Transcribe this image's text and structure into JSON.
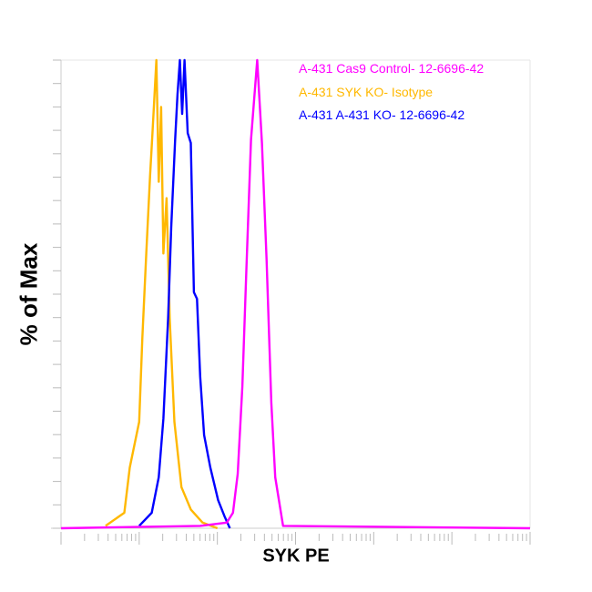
{
  "chart_data": {
    "type": "line",
    "title": "",
    "xlabel": "SYK PE",
    "ylabel": "% of Max",
    "x_scale": "log",
    "x_decades": 6,
    "xlim": [
      0,
      6
    ],
    "ylim": [
      0,
      100
    ],
    "grid": false,
    "legend_position": "top-right",
    "series": [
      {
        "name": "A-431 Cas9 Control- 12-6696-42",
        "color": "#ff00ff",
        "x": [
          0,
          1.78,
          2.12,
          2.2,
          2.26,
          2.32,
          2.37,
          2.43,
          2.51,
          2.57,
          2.63,
          2.69,
          2.74,
          2.84,
          6
        ],
        "y": [
          0,
          0.5,
          1.2,
          3.3,
          11.6,
          30.3,
          54.6,
          83,
          100,
          82.3,
          57.4,
          26.8,
          10.9,
          0.5,
          0
        ]
      },
      {
        "name": "A-431 SYK KO- Isotype",
        "color": "#ffb800",
        "x": [
          0.57,
          0.81,
          0.88,
          1.0,
          1.04,
          1.09,
          1.14,
          1.17,
          1.22,
          1.25,
          1.28,
          1.31,
          1.35,
          1.39,
          1.45,
          1.54,
          1.66,
          1.81,
          2.0
        ],
        "y": [
          0.5,
          3.3,
          13,
          22.7,
          40.7,
          58.7,
          75.4,
          84.4,
          100,
          74,
          90,
          58.7,
          70.5,
          44.9,
          22.7,
          8.8,
          4,
          1.2,
          0
        ]
      },
      {
        "name": "A-431 A-431 KO- 12-6696-42",
        "color": "#0000ff",
        "x": [
          1.0,
          1.16,
          1.25,
          1.31,
          1.37,
          1.41,
          1.46,
          1.49,
          1.52,
          1.55,
          1.58,
          1.62,
          1.66,
          1.7,
          1.74,
          1.78,
          1.83,
          1.91,
          2.01,
          2.09,
          2.16
        ],
        "y": [
          0.5,
          3.3,
          10.9,
          23.4,
          44.9,
          64.3,
          83,
          92.7,
          100,
          88.5,
          100,
          84.4,
          82.3,
          50.4,
          49,
          32.4,
          19.9,
          13,
          6,
          2.6,
          0
        ]
      }
    ]
  }
}
